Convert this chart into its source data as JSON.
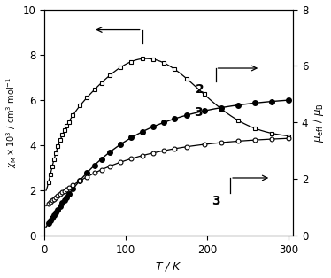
{
  "xlabel": "$T$ / K",
  "ylabel_left": "$\\chi_{\\rm M}\\times10^{3}$ / cm$^{3}$ mol$^{-1}$",
  "ylabel_right": "$\\mu_{\\rm eff}$ / $\\mu_{\\rm B}$",
  "xlim": [
    0,
    305
  ],
  "ylim_left": [
    0,
    10
  ],
  "ylim_right": [
    0,
    8
  ],
  "xticks": [
    0,
    100,
    200,
    300
  ],
  "yticks_left": [
    0,
    2,
    4,
    6,
    8,
    10
  ],
  "yticks_right": [
    0,
    2,
    4,
    6,
    8
  ],
  "label2": "2",
  "label3_chi": "3",
  "label3_mu": "3",
  "bg_color": "#ffffff"
}
